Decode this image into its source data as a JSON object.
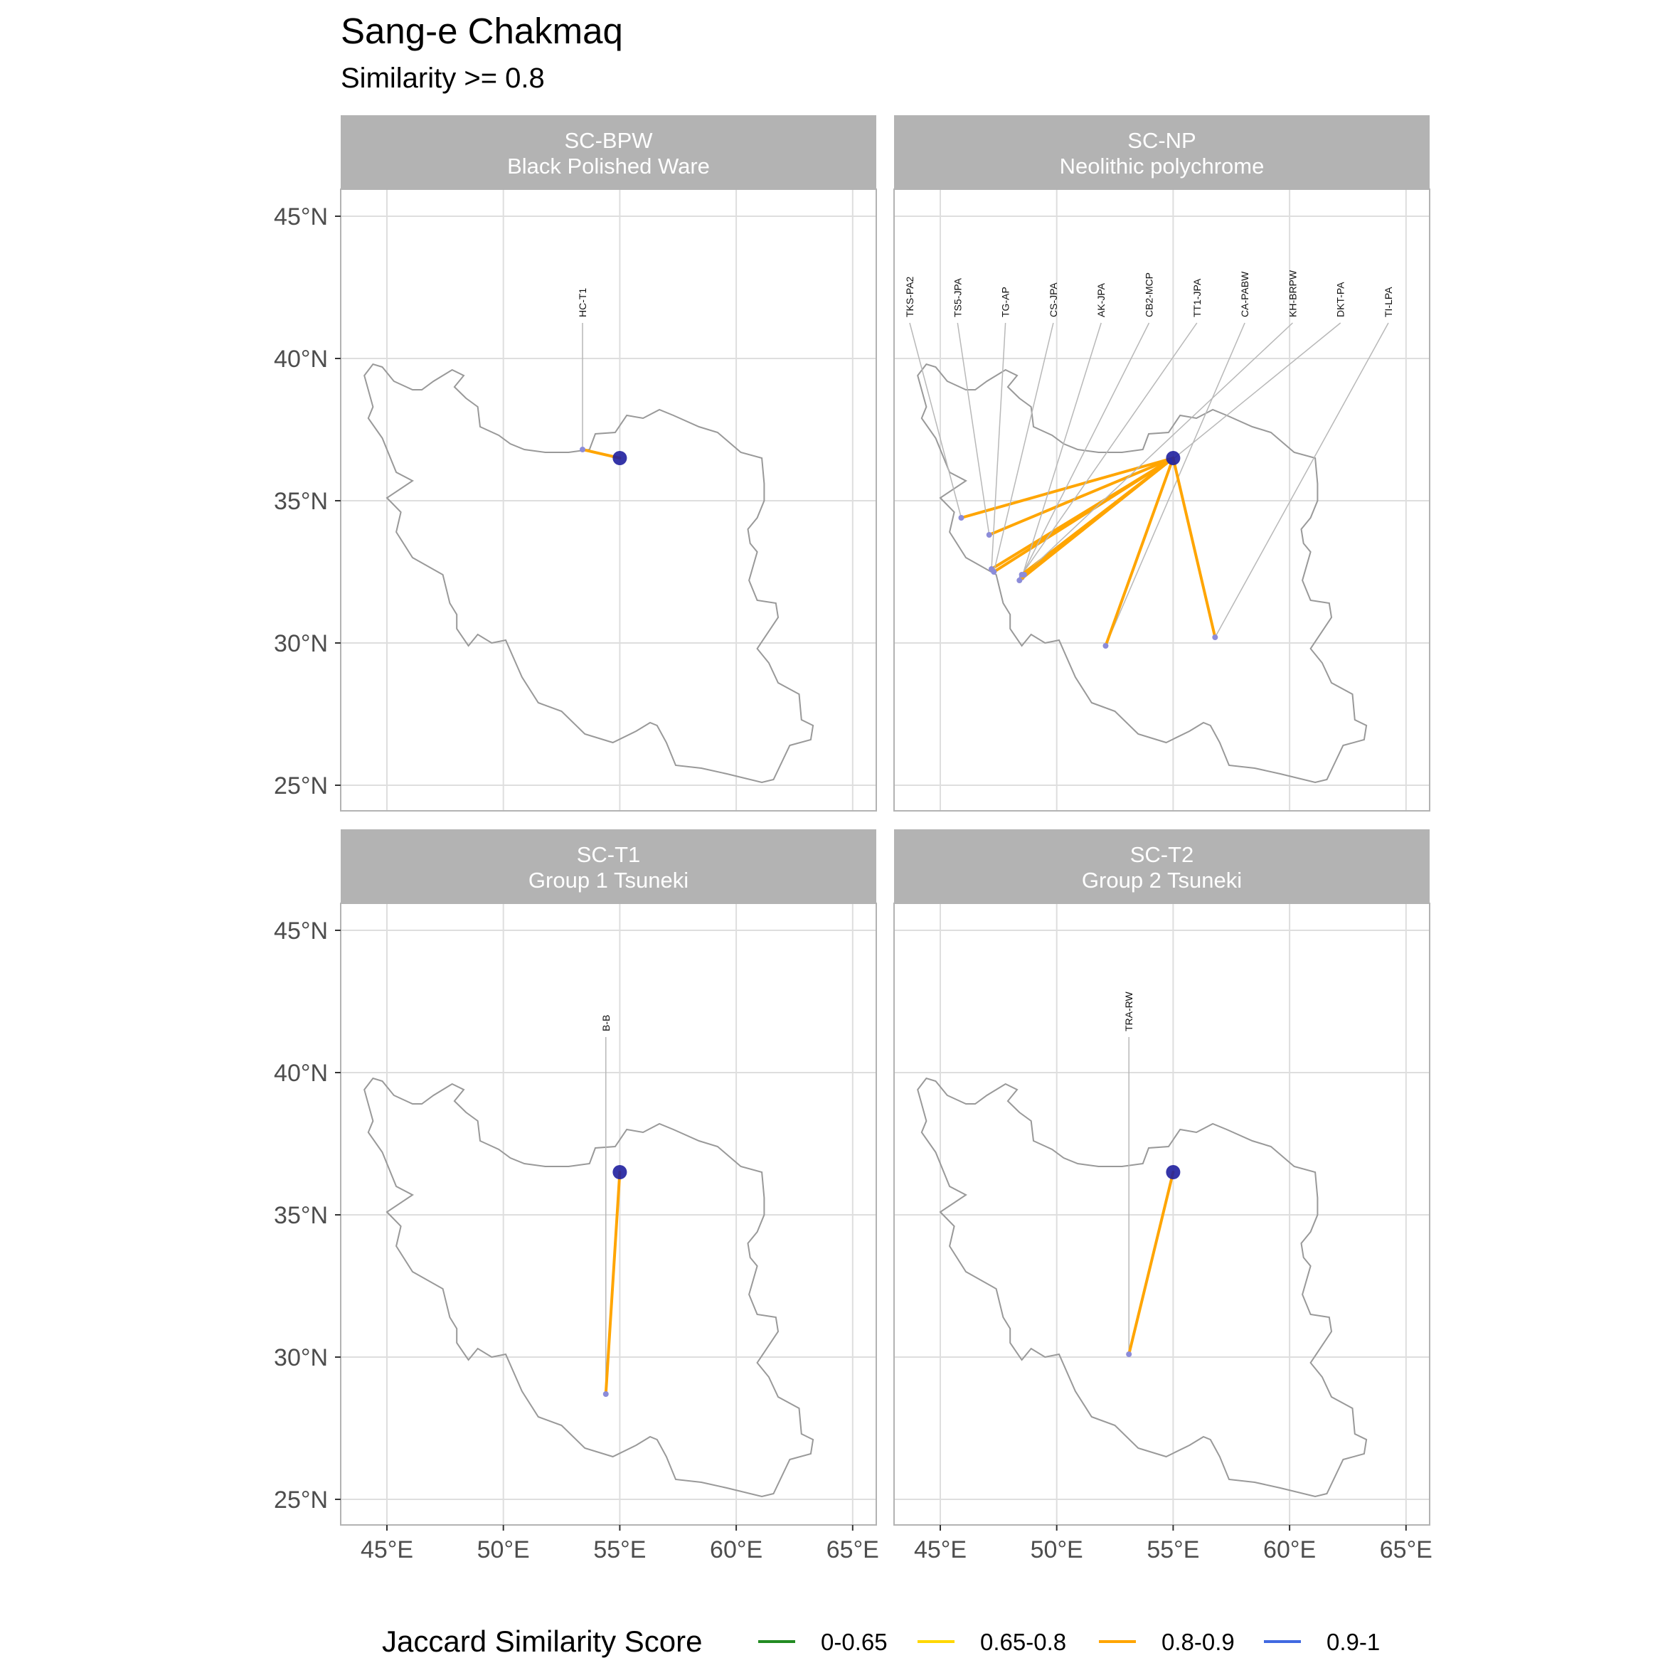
{
  "title": "Sang-e Chakmaq",
  "subtitle": "Similarity >= 0.8",
  "axes": {
    "lon_ticks": [
      "45°E",
      "50°E",
      "55°E",
      "60°E",
      "65°E"
    ],
    "lat_ticks": [
      "45°N",
      "40°N",
      "35°N",
      "30°N",
      "25°N"
    ]
  },
  "origin": {
    "name": "Sang-e Chakmaq",
    "lon": 55.0,
    "lat": 36.5
  },
  "legend": {
    "title": "Jaccard Similarity Score",
    "items": [
      {
        "label": "0-0.65",
        "color": "#228b22"
      },
      {
        "label": "0.65-0.8",
        "color": "#ffd700"
      },
      {
        "label": "0.8-0.9",
        "color": "#ffa500"
      },
      {
        "label": "0.9-1",
        "color": "#4169e1"
      }
    ]
  },
  "colors": {
    "strip_bg": "#b3b3b3",
    "grid": "#dedede",
    "border": "#b3b3b3",
    "outline": "#999999",
    "origin_point": "#1f1f9e",
    "site_point": "#8c8cd9",
    "leader": "#b8b8b8"
  },
  "panels": [
    {
      "code": "SC-BPW",
      "name": "Black Polished Ware",
      "connections": [
        {
          "label": "HC-T1",
          "lon": 53.4,
          "lat": 36.8,
          "score": "0.8-0.9"
        }
      ]
    },
    {
      "code": "SC-NP",
      "name": "Neolithic polychrome",
      "connections": [
        {
          "label": "TKS-PA2",
          "lon": 45.9,
          "lat": 34.4,
          "score": "0.8-0.9"
        },
        {
          "label": "TS5-JPA",
          "lon": 47.1,
          "lat": 33.8,
          "score": "0.8-0.9"
        },
        {
          "label": "TG-AP",
          "lon": 47.2,
          "lat": 32.6,
          "score": "0.8-0.9"
        },
        {
          "label": "CS-JPA",
          "lon": 47.3,
          "lat": 32.5,
          "score": "0.8-0.9"
        },
        {
          "label": "AK-JPA",
          "lon": 48.5,
          "lat": 32.3,
          "score": "0.8-0.9"
        },
        {
          "label": "CB2-MCP",
          "lon": 48.4,
          "lat": 32.2,
          "score": "0.8-0.9"
        },
        {
          "label": "TT1-JPA",
          "lon": 48.5,
          "lat": 32.4,
          "score": "0.8-0.9"
        },
        {
          "label": "CA-PABW",
          "lon": 52.1,
          "lat": 29.9,
          "score": "0.8-0.9"
        },
        {
          "label": "KH-BRPW",
          "lon": 48.6,
          "lat": 32.4,
          "score": "0.8-0.9"
        },
        {
          "label": "DKT-PA",
          "lon": 54.9,
          "lat": 36.4,
          "score": "0.8-0.9"
        },
        {
          "label": "TI-LPA",
          "lon": 56.8,
          "lat": 30.2,
          "score": "0.8-0.9"
        }
      ]
    },
    {
      "code": "SC-T1",
      "name": "Group 1 Tsuneki",
      "connections": [
        {
          "label": "B-B",
          "lon": 54.4,
          "lat": 28.7,
          "score": "0.8-0.9"
        }
      ]
    },
    {
      "code": "SC-T2",
      "name": "Group 2 Tsuneki",
      "connections": [
        {
          "label": "TRA-RW",
          "lon": 53.1,
          "lat": 30.1,
          "score": "0.8-0.9"
        }
      ]
    }
  ]
}
